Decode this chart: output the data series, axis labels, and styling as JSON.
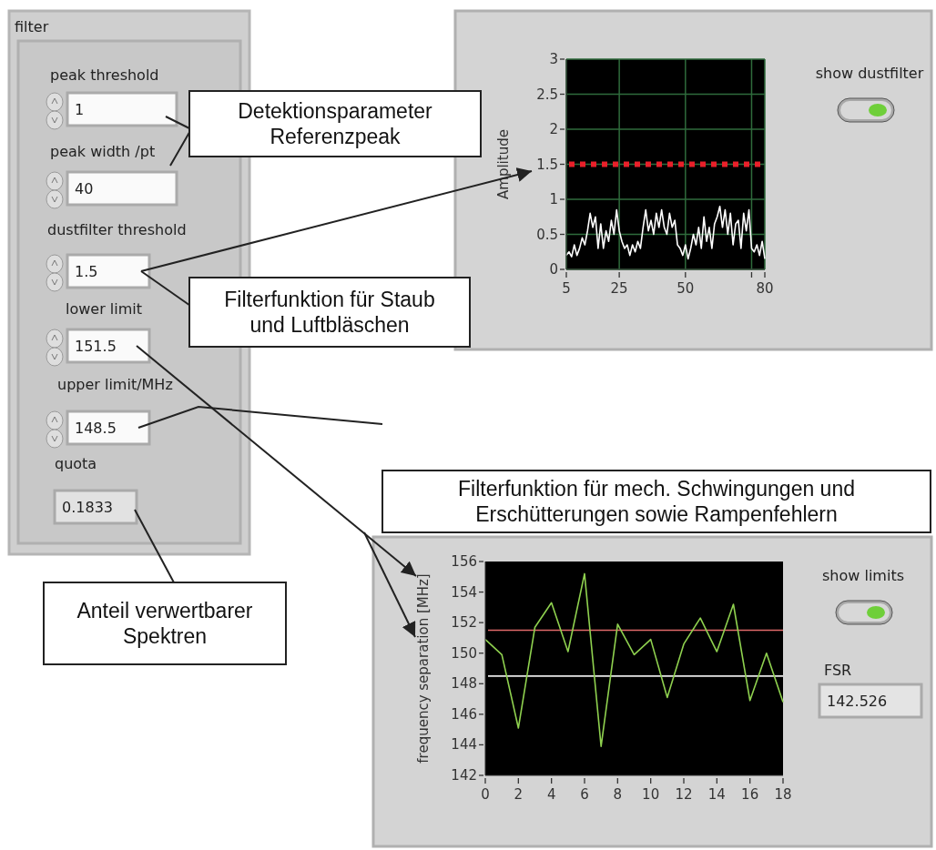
{
  "chart_data": [
    {
      "type": "other",
      "title": "filter",
      "annotations": [
        "peak threshold",
        "1",
        "peak width /pt",
        "40",
        "dustfilter threshold",
        "1.5",
        "lower limit",
        "151.5",
        "upper limit/MHz",
        "148.5",
        "quota",
        "0.1833",
        "Detektionsparameter\nReferenzpeak",
        "Filterfunktion für Staub\nund Luftbläschen",
        "Filterfunktion für mech. Schwingungen und\nErschütterungen sowie Rampenfehlern",
        "Anteil verwertbarer\nSpektren"
      ]
    },
    {
      "type": "line",
      "ylabel": "Amplitude",
      "xlim": [
        5,
        80
      ],
      "xticks": [
        5,
        25,
        50,
        {
          "value": 75,
          "label": null
        },
        80
      ],
      "ylim": [
        0,
        3
      ],
      "yticks": [
        0,
        0.5,
        1,
        1.5,
        2,
        2.5,
        3
      ],
      "grid": true,
      "line_style": "solid",
      "annotations": [
        "show  dustfilter"
      ],
      "ref_lines": [
        {
          "axis": "y",
          "value": 1.5,
          "label": null,
          "color": "#e8202a",
          "line_style": "dotted"
        }
      ],
      "x": [
        5,
        6,
        7,
        8,
        9,
        10,
        11,
        12,
        13,
        14,
        15,
        16,
        17,
        18,
        19,
        20,
        21,
        22,
        23,
        24,
        25,
        26,
        27,
        28,
        29,
        30,
        31,
        32,
        33,
        34,
        35,
        36,
        37,
        38,
        39,
        40,
        41,
        42,
        43,
        44,
        45,
        46,
        47,
        48,
        49,
        50,
        51,
        52,
        53,
        54,
        55,
        56,
        57,
        58,
        59,
        60,
        61,
        62,
        63,
        64,
        65,
        66,
        67,
        68,
        69,
        70,
        71,
        72,
        73,
        74,
        75,
        76,
        77,
        78,
        79,
        80
      ],
      "series": [
        {
          "color": "#ffffff",
          "values": [
            0.2,
            0.25,
            0.18,
            0.35,
            0.2,
            0.3,
            0.45,
            0.35,
            0.55,
            0.8,
            0.6,
            0.75,
            0.3,
            0.65,
            0.3,
            0.55,
            0.4,
            0.7,
            0.5,
            0.85,
            0.55,
            0.4,
            0.3,
            0.35,
            0.2,
            0.35,
            0.25,
            0.4,
            0.3,
            0.6,
            0.85,
            0.55,
            0.7,
            0.5,
            0.8,
            0.6,
            0.85,
            0.6,
            0.5,
            0.8,
            0.6,
            0.7,
            0.35,
            0.3,
            0.2,
            0.35,
            0.15,
            0.3,
            0.5,
            0.35,
            0.6,
            0.3,
            0.75,
            0.4,
            0.6,
            0.3,
            0.65,
            0.75,
            0.9,
            0.6,
            0.85,
            0.5,
            0.8,
            0.35,
            0.65,
            0.7,
            0.3,
            0.8,
            0.55,
            0.85,
            0.3,
            0.25,
            0.35,
            0.2,
            0.4,
            0.15
          ]
        }
      ]
    },
    {
      "type": "line",
      "ylabel": "frequency separation  [MHz]",
      "xlim": [
        0,
        18
      ],
      "xticks": [
        0,
        2,
        4,
        6,
        8,
        10,
        12,
        14,
        16,
        18
      ],
      "ylim": [
        142,
        156
      ],
      "yticks": [
        142,
        144,
        146,
        148,
        150,
        152,
        154,
        156
      ],
      "line_style": "solid",
      "annotations": [
        "show limits",
        "FSR",
        "142.526"
      ],
      "ref_lines": [
        {
          "axis": "y",
          "value": 151.5,
          "label": null,
          "color": "#e06a6a",
          "line_style": "solid"
        },
        {
          "axis": "y",
          "value": 148.5,
          "label": null,
          "color": "#e8e8e8",
          "line_style": "solid"
        }
      ],
      "x": [
        0,
        1,
        2,
        3,
        4,
        5,
        6,
        7,
        8,
        9,
        10,
        11,
        12,
        13,
        14,
        15,
        16,
        17,
        18
      ],
      "series": [
        {
          "color": "#8fd14f",
          "values": [
            150.9,
            149.9,
            145.1,
            151.7,
            153.3,
            150.1,
            155.2,
            143.9,
            151.9,
            149.9,
            150.9,
            147.1,
            150.6,
            152.3,
            150.1,
            153.2,
            146.9,
            150,
            146.8
          ]
        }
      ]
    }
  ]
}
